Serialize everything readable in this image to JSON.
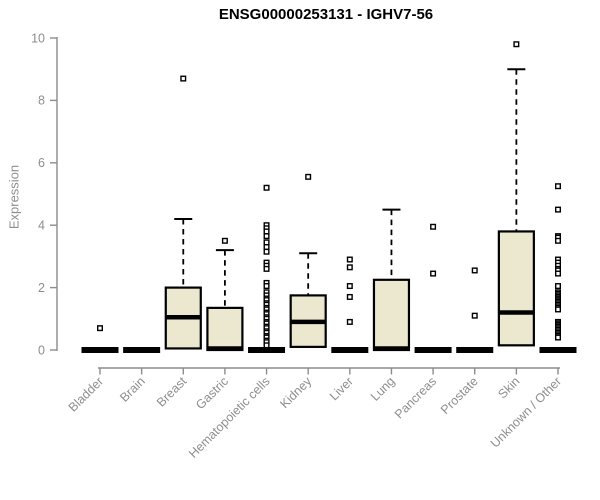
{
  "page": {
    "title": "ENSG00000253131 - IGHV7-56"
  },
  "chart_data": {
    "type": "boxplot",
    "title": "ENSG00000253131 - IGHV7-56",
    "ylabel": "Expression",
    "xlabel": "",
    "ylim": [
      0,
      10
    ],
    "yticks": [
      0,
      2,
      4,
      6,
      8,
      10
    ],
    "grid": false,
    "legend": "none",
    "categories": [
      "Bladder",
      "Brain",
      "Breast",
      "Gastric",
      "Hematopoietic cells",
      "Kidney",
      "Liver",
      "Lung",
      "Pancreas",
      "Prostate",
      "Skin",
      "Unknown / Other"
    ],
    "boxes": [
      {
        "category": "Bladder",
        "low": 0,
        "q1": 0,
        "median": 0,
        "q3": 0,
        "high": 0,
        "outliers": [
          0.7
        ]
      },
      {
        "category": "Brain",
        "low": 0,
        "q1": 0,
        "median": 0,
        "q3": 0,
        "high": 0,
        "outliers": []
      },
      {
        "category": "Breast",
        "low": 0.05,
        "q1": 0.05,
        "median": 1.05,
        "q3": 2.0,
        "high": 4.2,
        "outliers": [
          8.7
        ]
      },
      {
        "category": "Gastric",
        "low": 0,
        "q1": 0,
        "median": 0.05,
        "q3": 1.35,
        "high": 3.2,
        "outliers": [
          3.5
        ]
      },
      {
        "category": "Hematopoietic cells",
        "low": 0,
        "q1": 0,
        "median": 0,
        "q3": 0,
        "high": 0,
        "outliers": [
          5.2,
          4.0,
          3.9,
          3.8,
          3.65,
          3.45,
          3.3,
          3.15,
          2.8,
          2.7,
          2.6,
          2.15,
          2.05,
          1.85,
          1.75,
          1.65,
          1.6,
          1.5,
          1.45,
          1.35,
          1.3,
          1.2,
          1.15,
          1.05,
          1.0,
          0.9,
          0.85,
          0.75,
          0.7,
          0.6,
          0.55,
          0.45,
          0.4,
          0.3,
          0.25,
          0.15
        ]
      },
      {
        "category": "Kidney",
        "low": 0.1,
        "q1": 0.1,
        "median": 0.9,
        "q3": 1.75,
        "high": 3.1,
        "outliers": [
          5.55
        ]
      },
      {
        "category": "Liver",
        "low": 0,
        "q1": 0,
        "median": 0,
        "q3": 0,
        "high": 0,
        "outliers": [
          2.9,
          2.65,
          2.05,
          1.7,
          0.9
        ]
      },
      {
        "category": "Lung",
        "low": 0,
        "q1": 0,
        "median": 0.05,
        "q3": 2.25,
        "high": 4.5,
        "outliers": []
      },
      {
        "category": "Pancreas",
        "low": 0,
        "q1": 0,
        "median": 0,
        "q3": 0,
        "high": 0,
        "outliers": [
          3.95,
          2.45
        ]
      },
      {
        "category": "Prostate",
        "low": 0,
        "q1": 0,
        "median": 0,
        "q3": 0,
        "high": 0,
        "outliers": [
          2.55,
          1.1
        ]
      },
      {
        "category": "Skin",
        "low": 0.15,
        "q1": 0.15,
        "median": 1.2,
        "q3": 3.8,
        "high": 9.0,
        "outliers": [
          9.8
        ]
      },
      {
        "category": "Unknown / Other",
        "low": 0,
        "q1": 0,
        "median": 0,
        "q3": 0,
        "high": 0,
        "outliers": [
          5.25,
          4.5,
          3.65,
          3.6,
          3.5,
          2.9,
          2.8,
          2.7,
          2.6,
          2.55,
          2.45,
          2.05,
          1.85,
          1.8,
          1.75,
          1.7,
          1.65,
          1.6,
          1.55,
          1.5,
          1.45,
          1.4,
          1.35,
          1.3,
          0.9,
          0.85,
          0.8,
          0.75,
          0.7,
          0.65,
          0.6,
          0.55,
          0.5,
          0.45,
          0.4
        ]
      }
    ],
    "colors": {
      "box_fill": "#ece8cf",
      "box_stroke": "#000000",
      "median": "#000000",
      "whisker": "#000000",
      "outlier_stroke": "#000000",
      "outlier_fill": "#ffffff",
      "axis": "#8c8c8c",
      "tick_label": "#8e8e8e",
      "title": "#000000",
      "background": "#ffffff"
    }
  }
}
